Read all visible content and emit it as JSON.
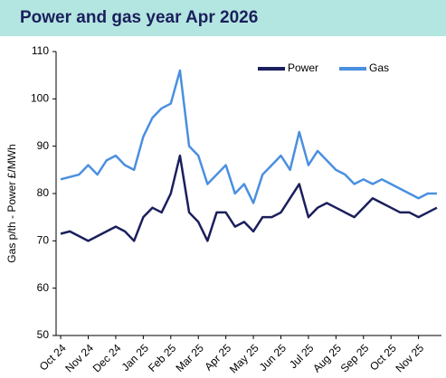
{
  "page_title": "Power and gas year Apr 2026",
  "chart_data": {
    "type": "line",
    "y_label": "Gas p/th - Power £/MWh",
    "categories": [
      "Oct 24",
      null,
      null,
      "Nov 24",
      null,
      null,
      "Dec 24",
      null,
      null,
      "Jan 25",
      null,
      null,
      "Feb 25",
      null,
      null,
      "Mar 25",
      null,
      null,
      "Apr 25",
      null,
      null,
      "May 25",
      null,
      null,
      "Jun 25",
      null,
      null,
      "Jul 25",
      null,
      null,
      "Aug 25",
      null,
      null,
      "Sep 25",
      null,
      null,
      "Oct 25",
      null,
      null,
      "Nov 25",
      null,
      null
    ],
    "series": [
      {
        "name": "Power",
        "color": "#1b1f5c",
        "values": [
          71.5,
          72,
          71,
          70,
          71,
          72,
          73,
          72,
          70,
          75,
          77,
          76,
          80,
          88,
          76,
          74,
          70,
          76,
          76,
          73,
          74,
          72,
          75,
          75,
          76,
          79,
          82,
          75,
          77,
          78,
          77,
          76,
          75,
          77,
          79,
          78,
          77,
          76,
          76,
          75,
          76,
          77
        ]
      },
      {
        "name": "Gas",
        "color": "#4a8fe0",
        "values": [
          83,
          83.5,
          84,
          86,
          84,
          87,
          88,
          86,
          85,
          92,
          96,
          98,
          99,
          106,
          90,
          88,
          82,
          84,
          86,
          80,
          82,
          78,
          84,
          86,
          88,
          85,
          93,
          86,
          89,
          87,
          85,
          84,
          82,
          83,
          82,
          83,
          82,
          81,
          80,
          79,
          80,
          80
        ]
      }
    ],
    "ylim": [
      50,
      110
    ],
    "yticks": [
      50,
      60,
      70,
      80,
      90,
      100,
      110
    ]
  }
}
